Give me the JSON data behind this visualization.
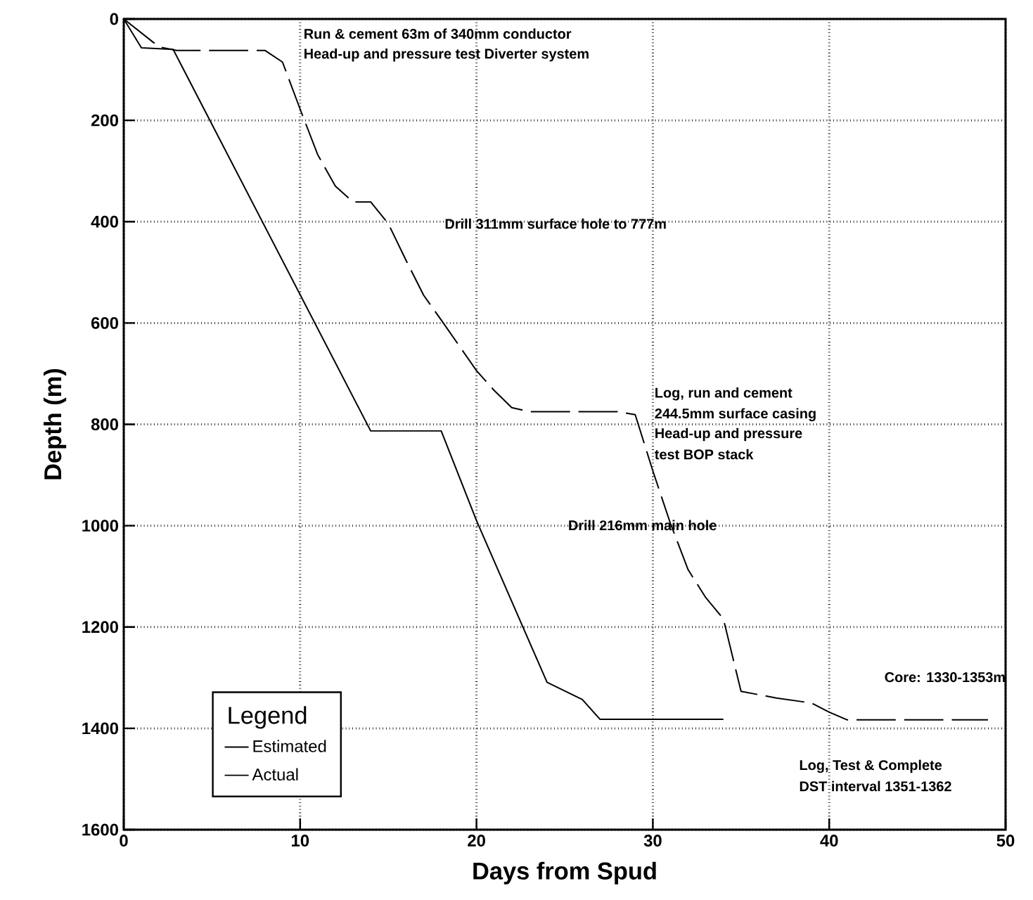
{
  "chart_data": {
    "type": "line",
    "xlabel": "Days from Spud",
    "ylabel": "Depth (m)",
    "xlim": [
      0,
      50
    ],
    "xticks": [
      0,
      10,
      20,
      30,
      40,
      50
    ],
    "ylim": [
      1600,
      0
    ],
    "yticks": [
      0,
      200,
      400,
      600,
      800,
      1000,
      1200,
      1400,
      1600
    ],
    "grid": true,
    "legend": "bottom left",
    "legend_title": "Legend",
    "series": [
      {
        "name": "Estimated",
        "color": "#000000",
        "line_style": "solid",
        "x": [
          0,
          1,
          2.8,
          14,
          18,
          20,
          24,
          26,
          27,
          34
        ],
        "values": [
          0,
          57,
          60,
          813,
          813,
          990,
          1309,
          1343,
          1382,
          1382
        ]
      },
      {
        "name": "Actual",
        "color": "#000000",
        "line_style": "dashed",
        "x": [
          0,
          2,
          3,
          8,
          9,
          10,
          11,
          12,
          13,
          14,
          15,
          16,
          17,
          18,
          20,
          21,
          22,
          23,
          28,
          29,
          30,
          31,
          32,
          33,
          34,
          35,
          37,
          39,
          40,
          41,
          49
        ],
        "values": [
          0,
          55,
          62,
          62,
          85,
          178,
          268,
          330,
          361,
          361,
          404,
          476,
          545,
          594,
          694,
          733,
          767,
          775,
          775,
          781,
          892,
          996,
          1087,
          1142,
          1184,
          1327,
          1340,
          1350,
          1368,
          1383,
          1383
        ]
      }
    ],
    "annotations": [
      "Run & cement 63m of 340mm conductor",
      "Head-up and pressure test Diverter system",
      "Drill 311mm surface hole to 777m",
      "Log, run and cement",
      "244.5mm surface casing",
      "Head-up and pressure",
      "test BOP stack",
      "Drill 216mm main hole",
      "Core: 1330-1353m",
      "Log, Test & Complete",
      "DST interval 1351-1362"
    ]
  }
}
